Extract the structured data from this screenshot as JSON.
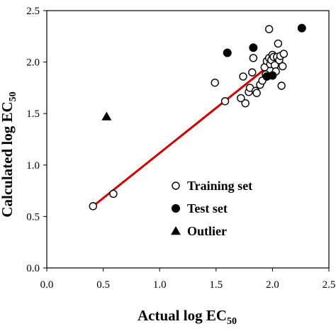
{
  "chart_data": {
    "type": "scatter",
    "xlabel": "Actual log EC",
    "xlabel_sub": "50",
    "ylabel": "Calculated log EC",
    "ylabel_sub": "50",
    "xlim": [
      0.0,
      2.5
    ],
    "ylim": [
      0.0,
      2.5
    ],
    "xticks": [
      "0.0",
      "0.5",
      "1.0",
      "1.5",
      "2.0",
      "2.5"
    ],
    "yticks": [
      "0.0",
      "0.5",
      "1.0",
      "1.5",
      "2.0",
      "2.5"
    ],
    "xtick_values": [
      0.0,
      0.5,
      1.0,
      1.5,
      2.0,
      2.5
    ],
    "ytick_values": [
      0.0,
      0.5,
      1.0,
      1.5,
      2.0,
      2.5
    ],
    "grid": false,
    "legend_position": "bottom-right",
    "series": [
      {
        "name": "Training set",
        "marker": "open-circle",
        "x": [
          0.41,
          0.59,
          1.49,
          1.58,
          1.74,
          1.76,
          1.72,
          1.79,
          1.8,
          1.82,
          1.83,
          1.85,
          1.86,
          1.89,
          1.91,
          1.93,
          1.94,
          1.95,
          1.97,
          1.97,
          1.98,
          1.99,
          2.0,
          2.01,
          2.02,
          2.03,
          2.04,
          2.05,
          2.06,
          2.07,
          2.08,
          2.09,
          2.1
        ],
        "y": [
          0.6,
          0.72,
          1.8,
          1.62,
          1.86,
          1.6,
          1.65,
          1.71,
          1.75,
          1.9,
          2.04,
          1.72,
          1.7,
          1.78,
          1.82,
          1.95,
          1.88,
          2.01,
          2.32,
          2.04,
          1.98,
          2.02,
          2.07,
          2.05,
          1.97,
          1.91,
          2.05,
          2.18,
          2.02,
          2.06,
          1.77,
          1.96,
          2.08
        ]
      },
      {
        "name": "Test set",
        "marker": "filled-circle",
        "x": [
          1.6,
          1.83,
          1.95,
          2.0,
          2.26
        ],
        "y": [
          2.09,
          2.14,
          1.86,
          1.87,
          2.33
        ]
      },
      {
        "name": "Outlier",
        "marker": "filled-triangle",
        "x": [
          0.53
        ],
        "y": [
          1.47
        ]
      }
    ],
    "fit_line": {
      "x": [
        0.41,
        2.09
      ],
      "y": [
        0.6,
        2.07
      ],
      "color": "#d40000"
    }
  }
}
